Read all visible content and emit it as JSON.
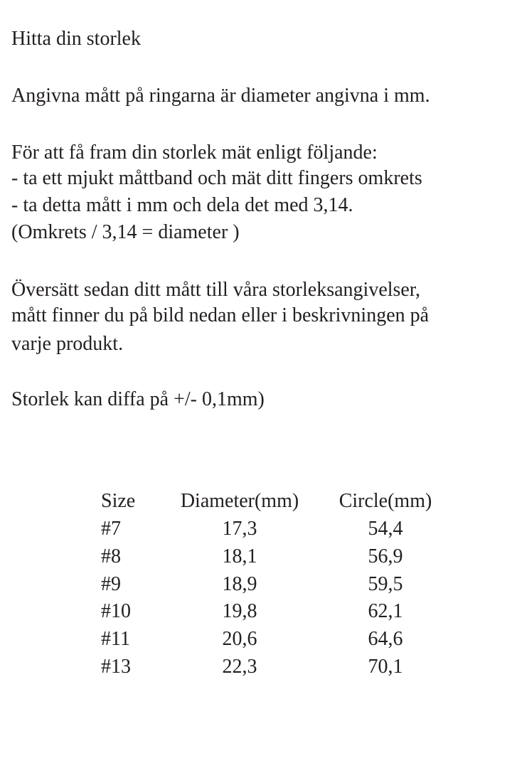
{
  "title": "Hitta din storlek",
  "intro": "Angivna mått på ringarna är diameter angivna i mm.",
  "instructions": [
    "För att få fram din storlek mät enligt följande:",
    "- ta ett mjukt måttband och mät ditt fingers omkrets",
    "- ta detta mått i mm och dela det med 3,14.",
    "(Omkrets / 3,14 = diameter )"
  ],
  "translate": [
    "Översätt sedan ditt mått till våra storleksangivelser,",
    "mått finner du på bild nedan eller i beskrivningen på",
    "varje produkt."
  ],
  "tolerance": "Storlek kan diffa på +/- 0,1mm)",
  "table": {
    "headers": [
      "Size",
      "Diameter(mm)",
      "Circle(mm)"
    ],
    "rows": [
      [
        "#7",
        "17,3",
        "54,4"
      ],
      [
        "#8",
        "18,1",
        "56,9"
      ],
      [
        "#9",
        "18,9",
        "59,5"
      ],
      [
        "#10",
        "19,8",
        "62,1"
      ],
      [
        "#11",
        "20,6",
        "64,6"
      ],
      [
        "#13",
        "22,3",
        "70,1"
      ]
    ]
  }
}
